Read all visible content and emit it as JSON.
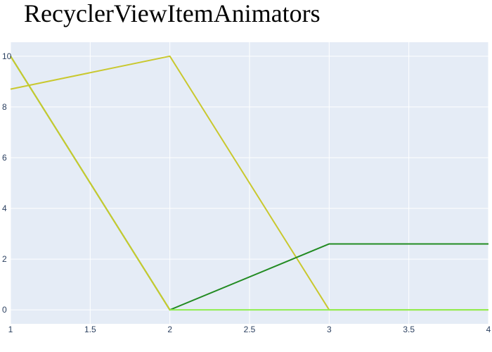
{
  "chart_data": {
    "type": "line",
    "title": "RecyclerViewItemAnimators",
    "xlabel": "",
    "ylabel": "",
    "xlim": [
      1,
      4
    ],
    "ylim": [
      -0.55,
      10.55
    ],
    "x_ticks": [
      "1",
      "1.5",
      "2",
      "2.5",
      "3",
      "3.5",
      "4"
    ],
    "y_ticks": [
      "0",
      "2",
      "4",
      "6",
      "8",
      "10"
    ],
    "grid": true,
    "legend": "none",
    "background_color": "#e5ecf6",
    "series": [
      {
        "color": "#c9c82e",
        "x": [
          1,
          2,
          3,
          4
        ],
        "y": [
          8.7,
          10,
          0,
          0
        ]
      },
      {
        "color": "#228b22",
        "x": [
          1,
          2,
          3,
          4
        ],
        "y": [
          10,
          0,
          2.6,
          2.6
        ]
      },
      {
        "color": "#90ee50",
        "x": [
          1,
          2,
          3,
          4
        ],
        "y": [
          10,
          0,
          0,
          0
        ]
      },
      {
        "color": "#c9c82e",
        "x": [
          1,
          2
        ],
        "y": [
          10,
          0
        ]
      }
    ]
  }
}
